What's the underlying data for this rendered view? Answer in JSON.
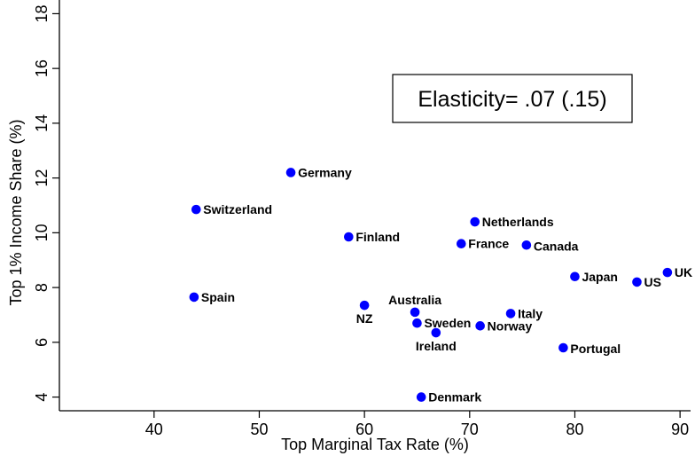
{
  "chart_data": {
    "type": "scatter",
    "title": "",
    "xlabel": "Top Marginal Tax Rate (%)",
    "ylabel": "Top 1% Income Share (%)",
    "xlim": [
      31,
      91
    ],
    "ylim": [
      3.5,
      18.5
    ],
    "xticks": [
      40,
      50,
      60,
      70,
      80,
      90
    ],
    "yticks": [
      4,
      6,
      8,
      10,
      12,
      14,
      16,
      18
    ],
    "grid": false,
    "marker_color": "#0000ff",
    "annotation": "Elasticity= .07 (.15)",
    "points": [
      {
        "label": "Germany",
        "x": 53.0,
        "y": 12.2
      },
      {
        "label": "Switzerland",
        "x": 44.0,
        "y": 10.85
      },
      {
        "label": "Finland",
        "x": 58.5,
        "y": 9.85
      },
      {
        "label": "Netherlands",
        "x": 70.5,
        "y": 10.4
      },
      {
        "label": "France",
        "x": 69.2,
        "y": 9.6
      },
      {
        "label": "Canada",
        "x": 75.4,
        "y": 9.55
      },
      {
        "label": "Japan",
        "x": 80.0,
        "y": 8.4
      },
      {
        "label": "US",
        "x": 85.9,
        "y": 8.2
      },
      {
        "label": "UK",
        "x": 88.8,
        "y": 8.55
      },
      {
        "label": "Spain",
        "x": 43.8,
        "y": 7.65
      },
      {
        "label": "NZ",
        "x": 60.0,
        "y": 7.35
      },
      {
        "label": "Australia",
        "x": 64.8,
        "y": 7.1
      },
      {
        "label": "Sweden",
        "x": 65.0,
        "y": 6.7
      },
      {
        "label": "Italy",
        "x": 73.9,
        "y": 7.05
      },
      {
        "label": "Norway",
        "x": 71.0,
        "y": 6.6
      },
      {
        "label": "Ireland",
        "x": 66.8,
        "y": 6.35
      },
      {
        "label": "Portugal",
        "x": 78.9,
        "y": 5.8
      },
      {
        "label": "Denmark",
        "x": 65.4,
        "y": 4.0
      }
    ]
  }
}
